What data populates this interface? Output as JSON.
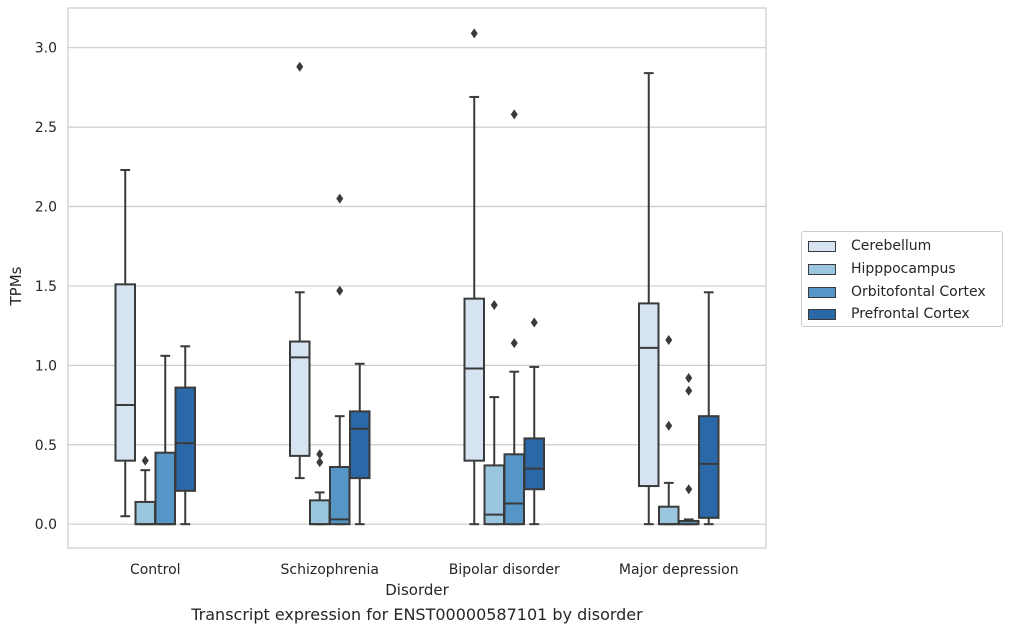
{
  "chart_data": {
    "type": "box",
    "title": "Transcript expression for ENST00000587101 by disorder",
    "xlabel": "Disorder",
    "ylabel": "TPMs",
    "ylim": [
      -0.15,
      3.25
    ],
    "yticks": [
      "0.0",
      "0.5",
      "1.0",
      "1.5",
      "2.0",
      "2.5",
      "3.0"
    ],
    "grid": "horizontal",
    "legend_position": "right",
    "categories": [
      "Control",
      "Schizophrenia",
      "Bipolar disorder",
      "Major depression"
    ],
    "series": [
      {
        "name": "Cerebellum",
        "color": "#d6e3f1",
        "boxes": [
          {
            "whisker_low": 0.05,
            "q1": 0.4,
            "median": 0.75,
            "q3": 1.51,
            "whisker_high": 2.23,
            "outliers": []
          },
          {
            "whisker_low": 0.29,
            "q1": 0.43,
            "median": 1.05,
            "q3": 1.15,
            "whisker_high": 1.46,
            "outliers": [
              2.88
            ]
          },
          {
            "whisker_low": 0.0,
            "q1": 0.4,
            "median": 0.98,
            "q3": 1.42,
            "whisker_high": 2.69,
            "outliers": [
              3.09
            ]
          },
          {
            "whisker_low": 0.0,
            "q1": 0.24,
            "median": 1.11,
            "q3": 1.39,
            "whisker_high": 2.84,
            "outliers": []
          }
        ]
      },
      {
        "name": "Hipppocampus",
        "color": "#9ac6e0",
        "boxes": [
          {
            "whisker_low": 0.0,
            "q1": 0.0,
            "median": 0.0,
            "q3": 0.14,
            "whisker_high": 0.34,
            "outliers": [
              0.4
            ]
          },
          {
            "whisker_low": 0.0,
            "q1": 0.0,
            "median": 0.0,
            "q3": 0.15,
            "whisker_high": 0.2,
            "outliers": [
              0.39,
              0.44
            ]
          },
          {
            "whisker_low": 0.0,
            "q1": 0.0,
            "median": 0.06,
            "q3": 0.37,
            "whisker_high": 0.8,
            "outliers": [
              1.38
            ]
          },
          {
            "whisker_low": 0.0,
            "q1": 0.0,
            "median": 0.0,
            "q3": 0.11,
            "whisker_high": 0.26,
            "outliers": [
              0.62,
              1.16
            ]
          }
        ]
      },
      {
        "name": "Orbitofontal Cortex",
        "color": "#5596c7",
        "boxes": [
          {
            "whisker_low": 0.0,
            "q1": 0.0,
            "median": 0.0,
            "q3": 0.45,
            "whisker_high": 1.06,
            "outliers": []
          },
          {
            "whisker_low": 0.0,
            "q1": 0.0,
            "median": 0.03,
            "q3": 0.36,
            "whisker_high": 0.68,
            "outliers": [
              1.47,
              2.05
            ]
          },
          {
            "whisker_low": 0.0,
            "q1": 0.0,
            "median": 0.13,
            "q3": 0.44,
            "whisker_high": 0.96,
            "outliers": [
              1.14,
              2.58
            ]
          },
          {
            "whisker_low": 0.0,
            "q1": 0.0,
            "median": 0.0,
            "q3": 0.02,
            "whisker_high": 0.03,
            "outliers": [
              0.22,
              0.84,
              0.92
            ]
          }
        ]
      },
      {
        "name": "Prefrontal Cortex",
        "color": "#2a68a7",
        "boxes": [
          {
            "whisker_low": 0.0,
            "q1": 0.21,
            "median": 0.51,
            "q3": 0.86,
            "whisker_high": 1.12,
            "outliers": []
          },
          {
            "whisker_low": 0.0,
            "q1": 0.29,
            "median": 0.6,
            "q3": 0.71,
            "whisker_high": 1.01,
            "outliers": []
          },
          {
            "whisker_low": 0.0,
            "q1": 0.22,
            "median": 0.35,
            "q3": 0.54,
            "whisker_high": 0.99,
            "outliers": [
              1.27
            ]
          },
          {
            "whisker_low": 0.0,
            "q1": 0.04,
            "median": 0.38,
            "q3": 0.68,
            "whisker_high": 1.46,
            "outliers": []
          }
        ]
      }
    ]
  }
}
